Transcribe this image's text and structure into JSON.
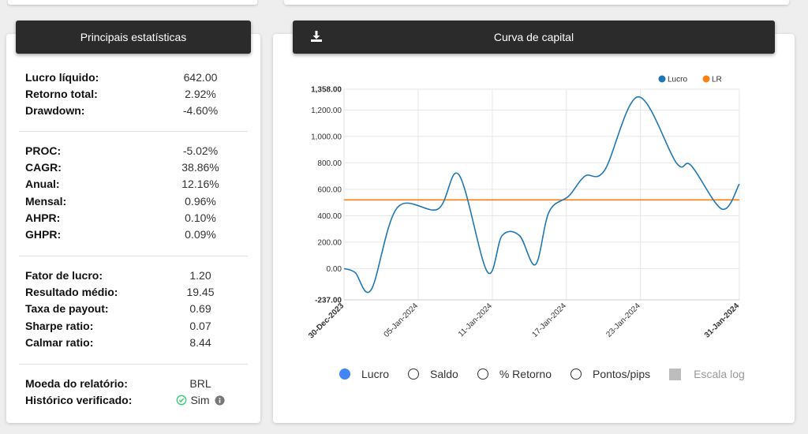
{
  "stats": {
    "title": "Principais estatísticas",
    "group1": [
      {
        "label": "Lucro líquido:",
        "value": "642.00"
      },
      {
        "label": "Retorno total:",
        "value": "2.92%"
      },
      {
        "label": "Drawdown:",
        "value": "-4.60%"
      }
    ],
    "group2": [
      {
        "label": "PROC:",
        "value": "-5.02%"
      },
      {
        "label": "CAGR:",
        "value": "38.86%"
      },
      {
        "label": "Anual:",
        "value": "12.16%"
      },
      {
        "label": "Mensal:",
        "value": "0.96%"
      },
      {
        "label": "AHPR:",
        "value": "0.10%"
      },
      {
        "label": "GHPR:",
        "value": "0.09%"
      }
    ],
    "group3": [
      {
        "label": "Fator de lucro:",
        "value": "1.20"
      },
      {
        "label": "Resultado médio:",
        "value": "19.45"
      },
      {
        "label": "Taxa de payout:",
        "value": "0.69"
      },
      {
        "label": "Sharpe ratio:",
        "value": "0.07"
      },
      {
        "label": "Calmar ratio:",
        "value": "8.44"
      }
    ],
    "group4": [
      {
        "label": "Moeda do relatório:",
        "value": "BRL"
      },
      {
        "label": "Histórico verificado:",
        "value": "Sim"
      }
    ]
  },
  "chart_panel": {
    "title": "Curva de capital",
    "options": [
      {
        "label": "Lucro",
        "selected": true
      },
      {
        "label": "Saldo",
        "selected": false
      },
      {
        "label": "% Retorno",
        "selected": false
      },
      {
        "label": "Pontos/pips",
        "selected": false
      }
    ],
    "log_scale_label": "Escala log"
  },
  "colors": {
    "lucro": "#1f77b4",
    "lr": "#ff7f0e",
    "header_bg": "#2b2b2b",
    "radio_selected": "#4285f4",
    "verified": "#2ecc71"
  },
  "chart_data": {
    "type": "line",
    "ylim": [
      -237.0,
      1358.0
    ],
    "y_ticks": [
      "1,358.00",
      "1,200.00",
      "1,000.00",
      "800.00",
      "600.00",
      "400.00",
      "200.00",
      "0.00",
      "-237.00"
    ],
    "y_tick_values": [
      1358,
      1200,
      1000,
      800,
      600,
      400,
      200,
      0,
      -237
    ],
    "x_ticks": [
      "30-Dec-2023",
      "05-Jan-2024",
      "11-Jan-2024",
      "17-Jan-2024",
      "23-Jan-2024",
      "31-Jan-2024"
    ],
    "x_tick_days": [
      0,
      6,
      12,
      18,
      24,
      32
    ],
    "x_tick_bold": [
      true,
      false,
      false,
      false,
      false,
      true
    ],
    "legend": [
      "Lucro",
      "LR"
    ],
    "legend_position": "top-right",
    "grid": true,
    "series": [
      {
        "name": "Lucro",
        "x": [
          0,
          0.9,
          2.2,
          4.3,
          7.6,
          9.3,
          11.6,
          12.8,
          14.2,
          15.5,
          16.6,
          18.2,
          19.5,
          21.1,
          23.8,
          26.9,
          28.1,
          30.6,
          32
        ],
        "y": [
          0,
          -30,
          -160,
          460,
          450,
          710,
          -25,
          250,
          250,
          30,
          430,
          550,
          700,
          745,
          1300,
          800,
          780,
          450,
          640
        ]
      },
      {
        "name": "LR",
        "x": [
          0,
          32
        ],
        "y": [
          520,
          520
        ]
      }
    ]
  }
}
